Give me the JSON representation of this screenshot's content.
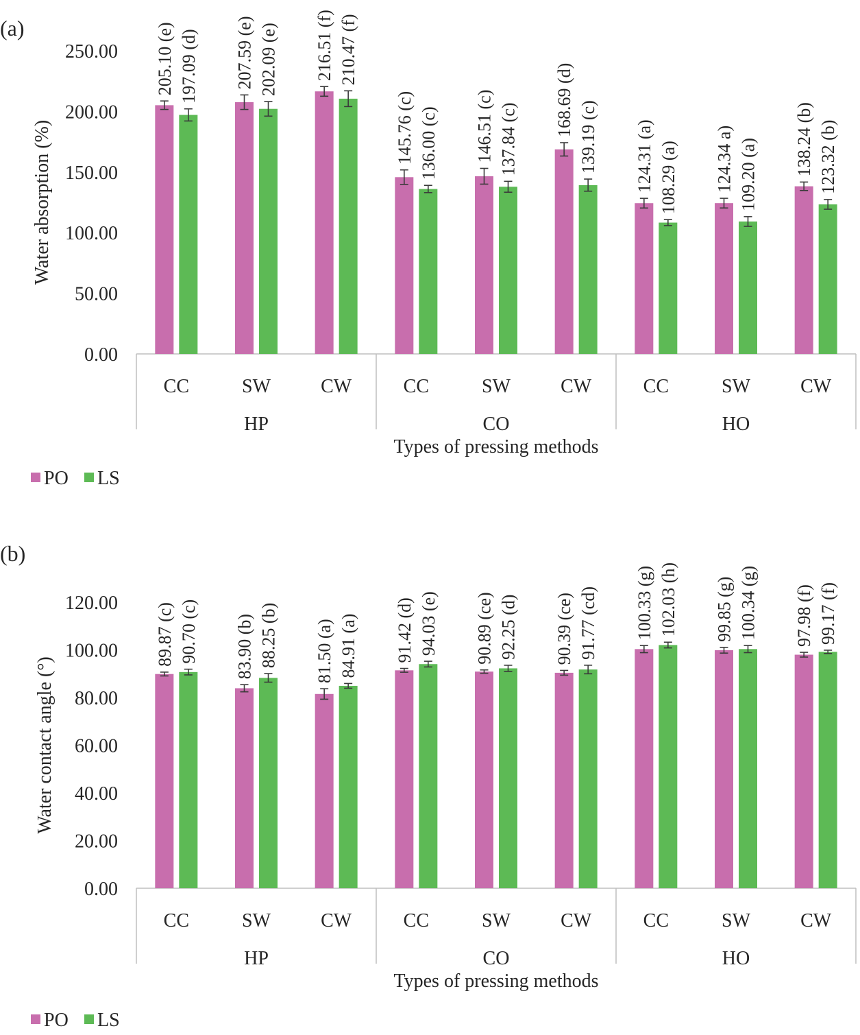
{
  "colors": {
    "po": "#C86EAD",
    "ls": "#5DBA55",
    "axis": "#bfbfbf",
    "text": "#262626"
  },
  "chart_data": [
    {
      "type": "bar",
      "panel_label": "(a)",
      "ylabel": "Water absorption (%)",
      "xlabel": "Types of pressing methods",
      "ylim": [
        0,
        250
      ],
      "yticks": [
        "0.00",
        "50.00",
        "100.00",
        "150.00",
        "200.00",
        "250.00"
      ],
      "groups": [
        "HP",
        "CO",
        "HO"
      ],
      "categories": [
        "CC",
        "SW",
        "CW",
        "CC",
        "SW",
        "CW",
        "CC",
        "SW",
        "CW"
      ],
      "series": [
        {
          "name": "PO",
          "values": [
            205.1,
            207.59,
            216.51,
            145.76,
            146.51,
            168.69,
            124.31,
            124.34,
            138.24
          ],
          "errors": [
            3.5,
            6,
            4,
            6,
            6.5,
            5.5,
            4,
            4,
            3.5
          ],
          "labels": [
            "205.10 (e)",
            "207.59 (e)",
            "216.51 (f)",
            "145.76 (c)",
            "146.51 (c)",
            "168.69 (d)",
            "124.31 (a)",
            "124.34 a)",
            "138.24 (b)"
          ]
        },
        {
          "name": "LS",
          "values": [
            197.09,
            202.09,
            210.47,
            136.0,
            137.84,
            139.19,
            108.29,
            109.2,
            123.32
          ],
          "errors": [
            5,
            6,
            6.5,
            3,
            4.5,
            5,
            2.5,
            4,
            4
          ],
          "labels": [
            "197.09 (d)",
            "202.09 (e)",
            "210.47 (f)",
            "136.00 (c)",
            "137.84 (c)",
            "139.19 (c)",
            "108.29 (a)",
            "109.20 (a)",
            "123.32 (b)"
          ]
        }
      ],
      "legend": [
        "PO",
        "LS"
      ]
    },
    {
      "type": "bar",
      "panel_label": "(b)",
      "ylabel": "Water contact angle (°)",
      "xlabel": "Types of pressing methods",
      "ylim": [
        0,
        120
      ],
      "yticks": [
        "0.00",
        "20.00",
        "40.00",
        "60.00",
        "80.00",
        "100.00",
        "120.00"
      ],
      "groups": [
        "HP",
        "CO",
        "HO"
      ],
      "categories": [
        "CC",
        "SW",
        "CW",
        "CC",
        "SW",
        "CW",
        "CC",
        "SW",
        "CW"
      ],
      "series": [
        {
          "name": "PO",
          "values": [
            89.87,
            83.9,
            81.5,
            91.42,
            90.89,
            90.39,
            100.33,
            99.85,
            97.98
          ],
          "errors": [
            0.8,
            1.5,
            2.2,
            0.8,
            0.7,
            1.0,
            1.5,
            1.2,
            1.0
          ],
          "labels": [
            "89.87 (c)",
            "83.90 (b)",
            "81.50 (a)",
            "91.42 (d)",
            "90.89 (ce)",
            "90.39 (ce)",
            "100.33 (g)",
            "99.85 (g)",
            "97.98 (f)"
          ]
        },
        {
          "name": "LS",
          "values": [
            90.7,
            88.25,
            84.91,
            94.03,
            92.25,
            91.77,
            102.03,
            100.34,
            99.17
          ],
          "errors": [
            1.2,
            1.8,
            1.0,
            1.2,
            1.3,
            1.8,
            1.2,
            1.5,
            0.7
          ],
          "labels": [
            "90.70 (c)",
            "88.25 (b)",
            "84.91 (a)",
            "94.03 (e)",
            "92.25 (d)",
            "91.77 (cd)",
            "102.03 (h)",
            "100.34 (g)",
            "99.17 (f)"
          ]
        }
      ],
      "legend": [
        "PO",
        "LS"
      ]
    }
  ]
}
